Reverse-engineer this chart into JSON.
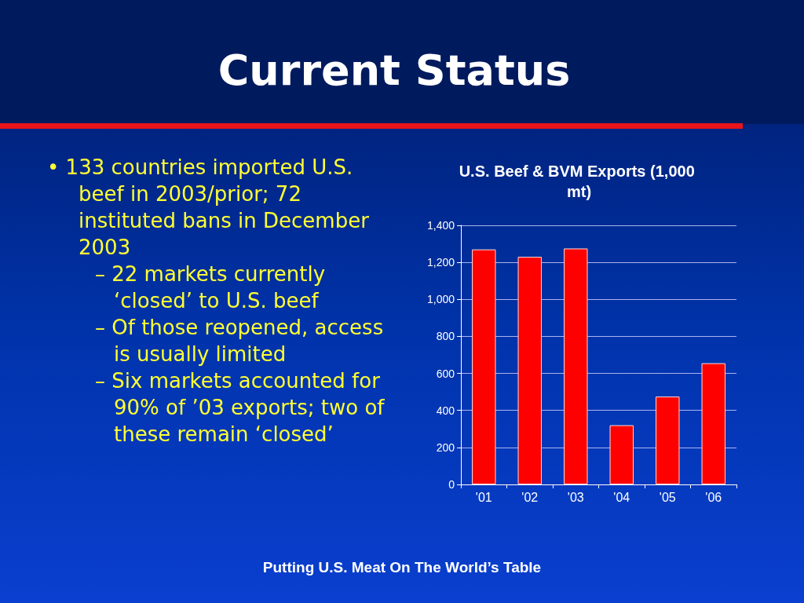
{
  "chart_data": {
    "type": "bar",
    "title": "Current Status",
    "subtitle": "U.S. Beef & BVM Exports (1,000 mt)",
    "categories": [
      "'01",
      "'02",
      "'03",
      "'04",
      "'05",
      "'06"
    ],
    "values": [
      1270,
      1230,
      1275,
      320,
      475,
      655
    ],
    "color": "#ff0000",
    "ylim": [
      0,
      1400
    ],
    "yticks": [
      0,
      {
        "value": 200,
        "label": "200"
      },
      {
        "value": 400,
        "label": "400"
      },
      {
        "value": 600,
        "label": "600"
      },
      {
        "value": 800,
        "label": "800"
      },
      {
        "value": 1000,
        "label": "1,000"
      },
      {
        "value": 1200,
        "label": "1,200"
      },
      {
        "value": 1400,
        "label": "1,400"
      }
    ],
    "grid": "y",
    "annotations": [
      "• 133 countries imported U.S. beef  in 2003/prior; 72 instituted bans in December 2003",
      "– 22 markets currently ‘closed’ to U.S. beef",
      "– Of those reopened, access is usually limited",
      "– Six markets accounted for 90% of ’03 exports; two of these remain ‘closed’",
      "Putting U.S. Meat On The World’s Table"
    ]
  }
}
